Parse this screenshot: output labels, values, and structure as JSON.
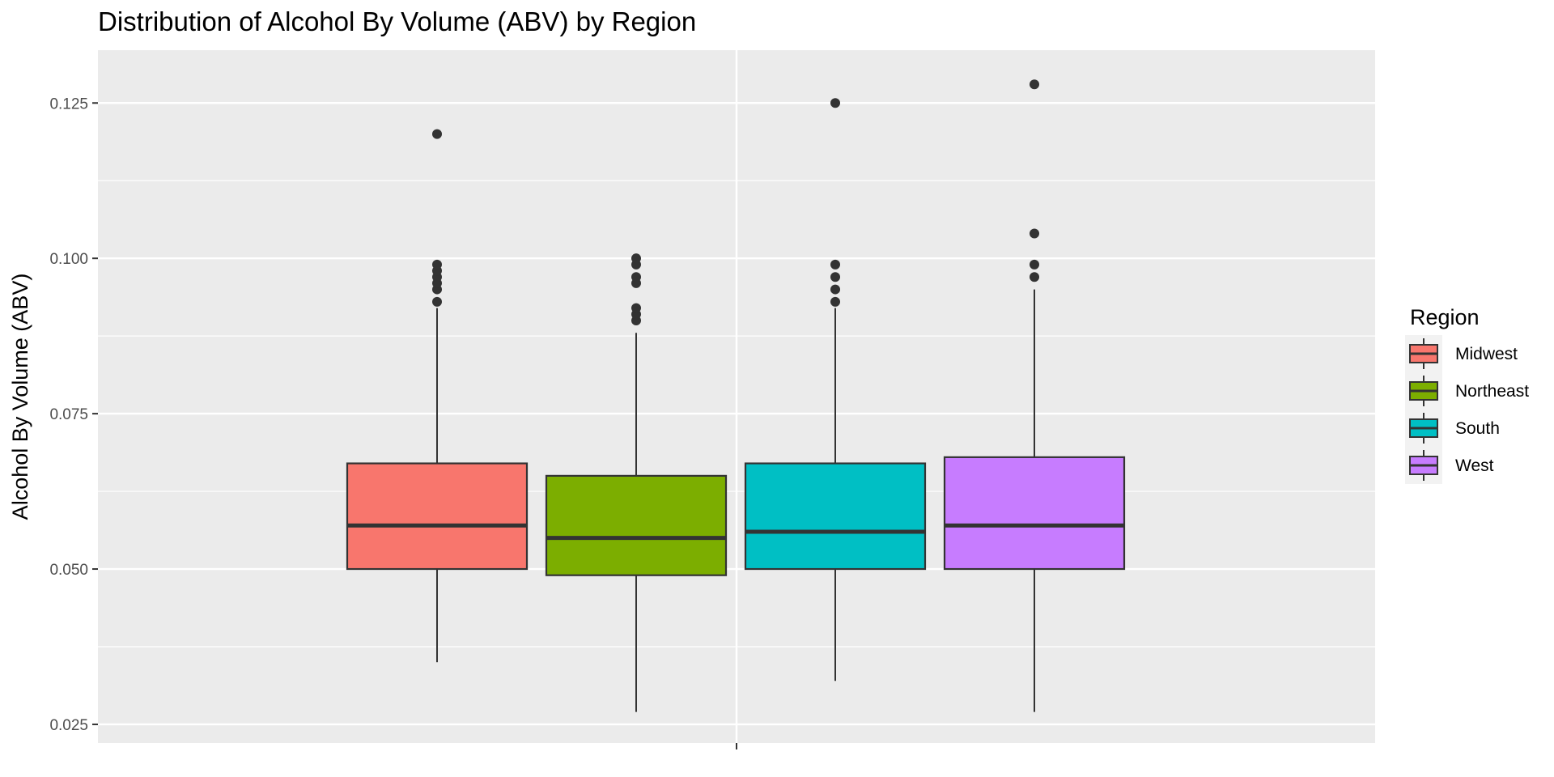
{
  "chart_data": {
    "type": "boxplot",
    "title": "Distribution of Alcohol By Volume (ABV) by Region",
    "xlabel": "",
    "ylabel": "Alcohol By Volume (ABV)",
    "ylim": [
      0.022,
      0.1335
    ],
    "y_ticks": [
      0.025,
      0.05,
      0.075,
      0.1,
      0.125
    ],
    "y_tick_labels": [
      "0.025",
      "0.050",
      "0.075",
      "0.100",
      "0.125"
    ],
    "grid": true,
    "legend": {
      "title": "Region",
      "position": "right"
    },
    "series": [
      {
        "name": "Midwest",
        "color": "#F8766D",
        "whisker_low": 0.035,
        "q1": 0.05,
        "median": 0.057,
        "q3": 0.067,
        "whisker_high": 0.092,
        "outliers": [
          0.093,
          0.095,
          0.096,
          0.097,
          0.098,
          0.099,
          0.12
        ]
      },
      {
        "name": "Northeast",
        "color": "#7CAE00",
        "whisker_low": 0.027,
        "q1": 0.049,
        "median": 0.055,
        "q3": 0.065,
        "whisker_high": 0.088,
        "outliers": [
          0.09,
          0.091,
          0.092,
          0.096,
          0.097,
          0.099,
          0.1
        ]
      },
      {
        "name": "South",
        "color": "#00BFC4",
        "whisker_low": 0.032,
        "q1": 0.05,
        "median": 0.056,
        "q3": 0.067,
        "whisker_high": 0.092,
        "outliers": [
          0.093,
          0.095,
          0.097,
          0.099,
          0.125
        ]
      },
      {
        "name": "West",
        "color": "#C77CFF",
        "whisker_low": 0.027,
        "q1": 0.05,
        "median": 0.057,
        "q3": 0.068,
        "whisker_high": 0.095,
        "outliers": [
          0.097,
          0.099,
          0.104,
          0.128
        ]
      }
    ]
  }
}
